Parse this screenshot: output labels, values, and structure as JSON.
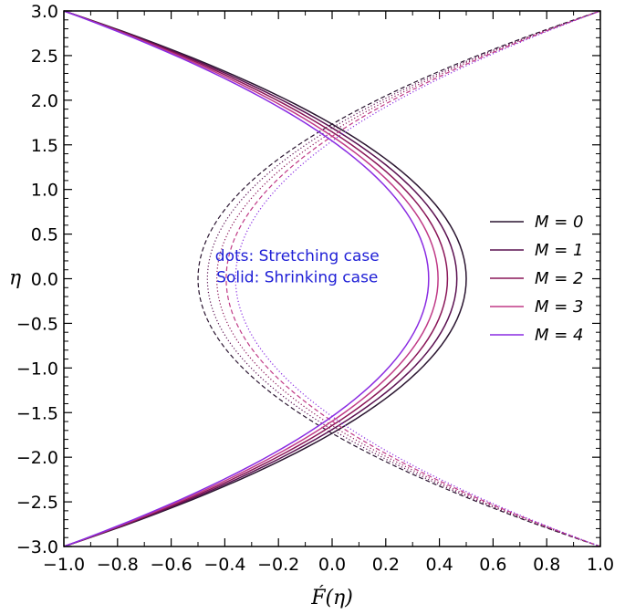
{
  "chart_data": {
    "type": "line",
    "title": "",
    "xlabel": "F́(η)",
    "ylabel": "η",
    "xlim": [
      -1.0,
      1.0
    ],
    "ylim": [
      -3.0,
      3.0
    ],
    "xticks": [
      -1.0,
      -0.8,
      -0.6,
      -0.4,
      -0.2,
      0.0,
      0.2,
      0.4,
      0.6,
      0.8,
      1.0
    ],
    "xtick_labels": [
      "−1.0",
      "−0.8",
      "−0.6",
      "−0.4",
      "−0.2",
      "0.0",
      "0.2",
      "0.4",
      "0.6",
      "0.8",
      "1.0"
    ],
    "yticks": [
      3.0,
      2.5,
      2.0,
      1.5,
      1.0,
      0.5,
      0.0,
      -0.5,
      -1.0,
      -1.5,
      -2.0,
      -2.5,
      -3.0
    ],
    "ytick_labels": [
      "3.0",
      "2.5",
      "2.0",
      "1.5",
      "1.0",
      "0.5",
      "0.0",
      "−0.5",
      "−1.0",
      "−1.5",
      "−2.0",
      "−2.5",
      "−3.0"
    ],
    "grid": false,
    "legend_position": "right",
    "annotations": [
      "dots: Stretching case",
      "Solid: Shrinking case"
    ],
    "series": [
      {
        "name": "M = 0",
        "color": "#2a1530",
        "shrinking_max": 0.5,
        "stretching_min": -0.5
      },
      {
        "name": "M = 1",
        "color": "#5a1050",
        "shrinking_max": 0.465,
        "stretching_min": -0.465
      },
      {
        "name": "M = 2",
        "color": "#8a1658",
        "shrinking_max": 0.43,
        "stretching_min": -0.43
      },
      {
        "name": "M = 3",
        "color": "#c03a86",
        "shrinking_max": 0.395,
        "stretching_min": -0.395
      },
      {
        "name": "M = 4",
        "color": "#8a2be2",
        "shrinking_max": 0.36,
        "stretching_min": -0.36
      }
    ]
  }
}
